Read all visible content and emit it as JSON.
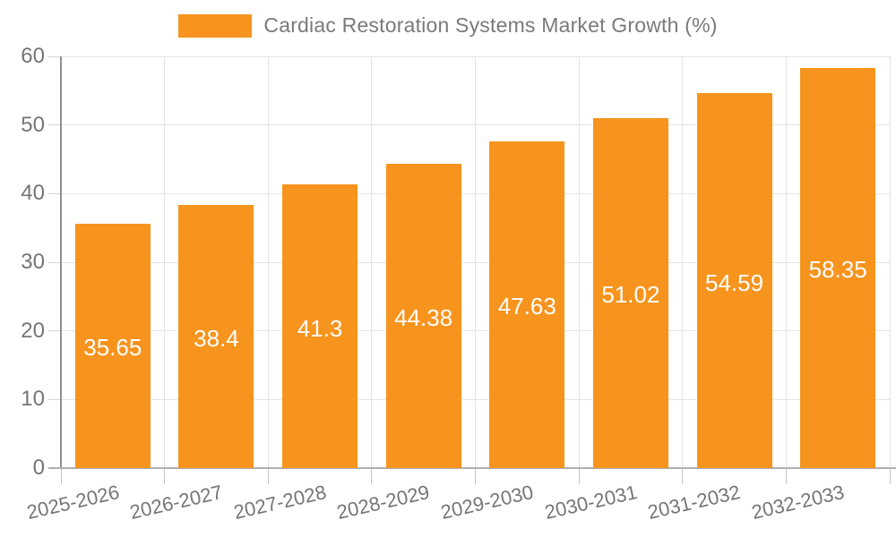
{
  "chart_data": {
    "type": "bar",
    "title": "Cardiac Restoration Systems Market Growth (%)",
    "categories": [
      "2025-2026",
      "2026-2027",
      "2027-2028",
      "2028-2029",
      "2029-2030",
      "2030-2031",
      "2031-2032",
      "2032-2033"
    ],
    "values": [
      35.65,
      38.4,
      41.3,
      44.38,
      47.63,
      51.02,
      54.59,
      58.35
    ],
    "value_labels": [
      "35.65",
      "38.4",
      "41.3",
      "44.38",
      "47.63",
      "51.02",
      "54.59",
      "58.35"
    ],
    "xlabel": "",
    "ylabel": "",
    "ylim": [
      0,
      60
    ],
    "yticks": [
      0,
      10,
      20,
      30,
      40,
      50,
      60
    ],
    "grid": true,
    "legend_position": "top",
    "bar_color": "#f7941e",
    "value_label_color": "#ffffff",
    "axis_text_color": "#757575",
    "legend_text_color": "#7a7a7a",
    "gridline_color": "#e5e5e5"
  }
}
